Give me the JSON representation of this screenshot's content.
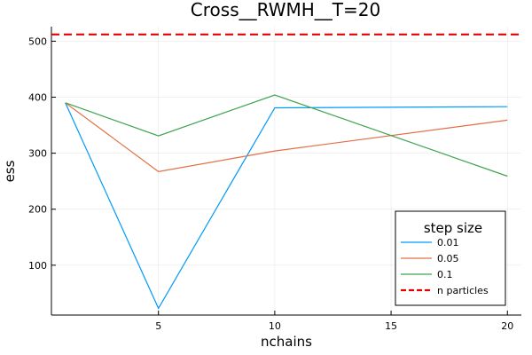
{
  "chart_data": {
    "type": "line",
    "title": "Cross__RWMH__T=20",
    "xlabel": "nchains",
    "ylabel": "ess",
    "xlim": [
      0.4,
      20.6
    ],
    "ylim": [
      11,
      526
    ],
    "xticks": [
      5,
      10,
      15,
      20
    ],
    "yticks": [
      100,
      200,
      300,
      400,
      500
    ],
    "x": [
      1,
      5,
      10,
      20
    ],
    "grid": true,
    "legend": {
      "title": "step size",
      "position": "bottom-right"
    },
    "series": [
      {
        "name": "0.01",
        "color": "#009AFA",
        "values": [
          390,
          23,
          381,
          383
        ]
      },
      {
        "name": "0.05",
        "color": "#E26F46",
        "values": [
          390,
          267,
          304,
          359
        ]
      },
      {
        "name": "0.1",
        "color": "#3DA44E",
        "values": [
          390,
          331,
          404,
          259
        ]
      }
    ],
    "reference_lines": [
      {
        "name": "n particles",
        "color": "#E60000",
        "style": "dashed",
        "value": 512
      }
    ]
  }
}
